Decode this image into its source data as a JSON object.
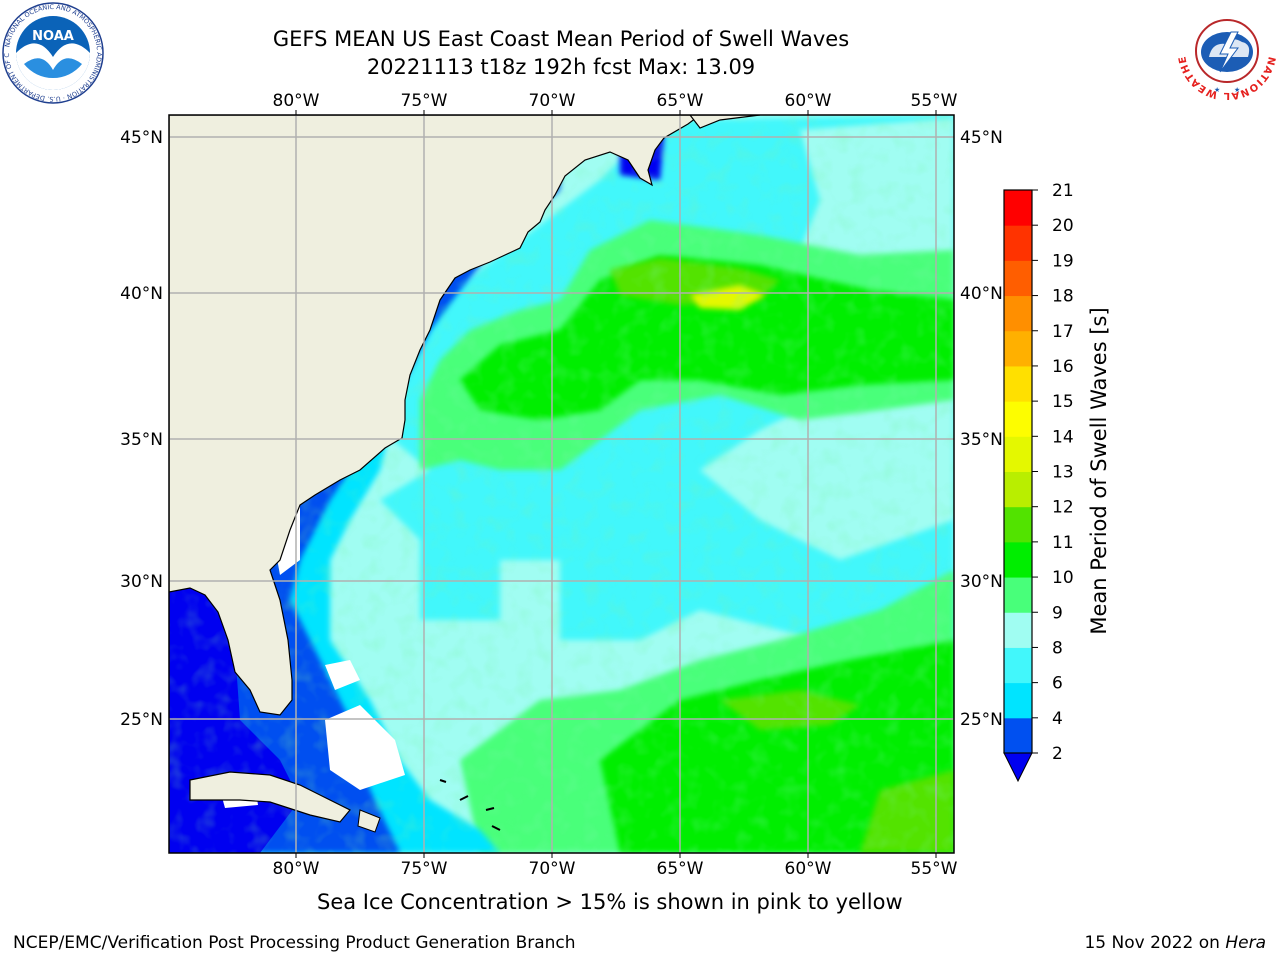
{
  "header": {
    "title_line1": "GEFS MEAN US East Coast Mean Period of Swell Waves",
    "title_line2": "20221113 t18z 192h fcst   Max: 13.09"
  },
  "logos": {
    "left": {
      "icon": "noaa-logo",
      "text": "NOAA",
      "ring_text": "NATIONAL OCEANIC AND ATMOSPHERIC ADMINISTRATION · U.S. DEPARTMENT OF COMMERCE"
    },
    "right": {
      "icon": "nws-logo",
      "ring_text": "NATIONAL WEATHER SERVICE"
    }
  },
  "map": {
    "lon_labels": [
      "80°W",
      "75°W",
      "70°W",
      "65°W",
      "60°W",
      "55°W"
    ],
    "lat_labels": [
      "45°N",
      "40°N",
      "35°N",
      "30°N",
      "25°N"
    ],
    "colors": {
      "land": "#efefdf",
      "grid": "#b0b0b0",
      "no_data": "#ffffff"
    }
  },
  "colorbar": {
    "label": "Mean Period of Swell Waves [s]",
    "ticks": [
      "2",
      "4",
      "6",
      "8",
      "9",
      "10",
      "11",
      "12",
      "13",
      "14",
      "15",
      "16",
      "17",
      "18",
      "19",
      "20",
      "21"
    ],
    "colors": [
      "#0050f0",
      "#00e4ff",
      "#42f7fb",
      "#a0fdf2",
      "#48ff7a",
      "#00ee00",
      "#52e300",
      "#b9ee00",
      "#e4f800",
      "#fdfd00",
      "#ffe000",
      "#ffb000",
      "#ff8f00",
      "#ff5e00",
      "#ff3300",
      "#ff0000"
    ],
    "under_color": "#0000f0"
  },
  "footer": {
    "caption": "Sea Ice Concentration > 15% is shown in pink to yellow",
    "left": "NCEP/EMC/Verification Post Processing Product Generation Branch",
    "right_date": "15 Nov 2022 on ",
    "right_machine": "Hera"
  }
}
